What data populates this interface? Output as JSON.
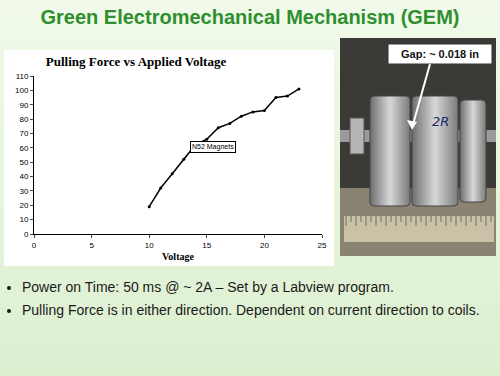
{
  "slide": {
    "title": "Green Electromechanical Mechanism (GEM)",
    "photo_callout": "Gap: ~ 0.018 in",
    "photo_mark": "2R",
    "bullets": [
      "Power on Time: 50 ms @ ~ 2A – Set by a Labview program.",
      "Pulling Force is in either direction. Dependent on current direction to coils."
    ]
  },
  "chart_data": {
    "type": "line",
    "title": "Pulling Force vs Applied Voltage",
    "xlabel": "Voltage",
    "x": [
      10,
      11,
      12,
      13,
      14,
      15,
      16,
      17,
      18,
      19,
      20,
      21,
      22,
      23
    ],
    "values": [
      19,
      32,
      42,
      52,
      62,
      66,
      74,
      77,
      82,
      85,
      86,
      95,
      96,
      101
    ],
    "color": "#000000",
    "marker": "circle",
    "annotations": [
      "N52 Magnets"
    ],
    "xlim": [
      0,
      25
    ],
    "xticks": [
      0,
      5,
      10,
      15,
      20,
      25
    ],
    "ylim": [
      0,
      110
    ],
    "yticks": [
      0,
      10,
      20,
      30,
      40,
      50,
      60,
      70,
      80,
      90,
      100,
      110
    ],
    "grid": false
  }
}
